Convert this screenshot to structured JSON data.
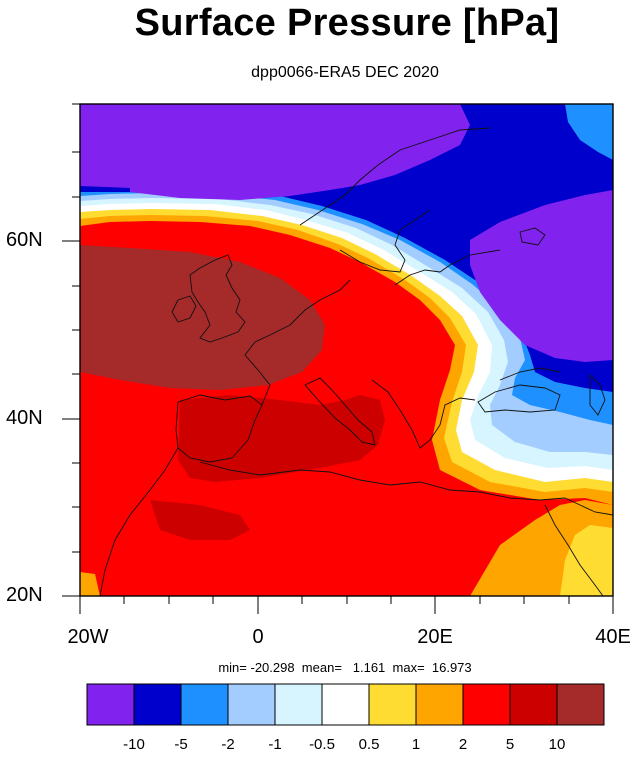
{
  "title": "Surface Pressure [hPa]",
  "subtitle": "dpp0066-ERA5 DEC 2020",
  "stats": "min= -20.298  mean=   1.161  max=  16.973",
  "lat_labels": [
    "60N",
    "40N",
    "20N"
  ],
  "lon_labels": [
    "20W",
    "0",
    "20E",
    "40E"
  ],
  "colorbar": {
    "colors": [
      "#8122ee",
      "#0000cd",
      "#1e90ff",
      "#a3cdff",
      "#d6f5ff",
      "#ffffff",
      "#ffdc32",
      "#ffa500",
      "#ff0000",
      "#cd0000",
      "#a52a2a"
    ],
    "labels": [
      "-10",
      "-5",
      "-2",
      "-1",
      "-0.5",
      "0.5",
      "1",
      "2",
      "5",
      "10"
    ]
  },
  "map": {
    "lon_range": [
      -20,
      40
    ],
    "lat_range": [
      20,
      75
    ]
  }
}
